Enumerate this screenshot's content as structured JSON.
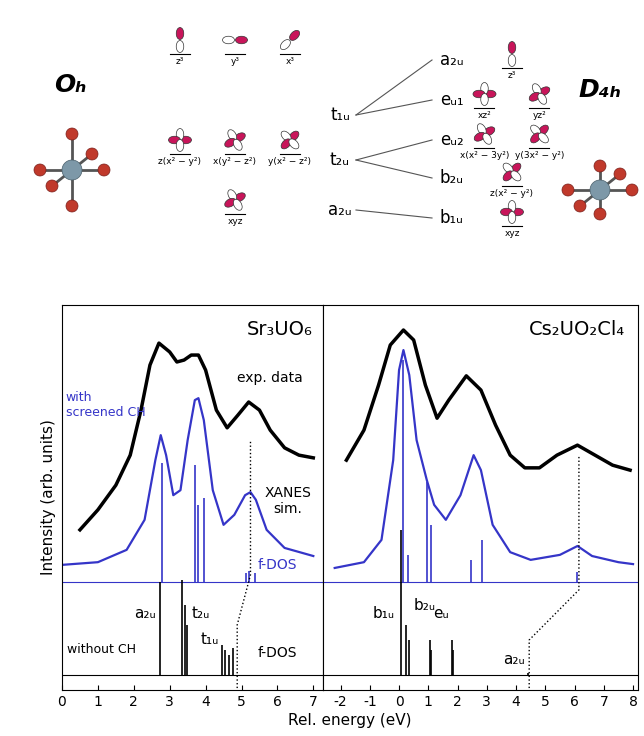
{
  "diagram": {
    "left": {
      "label": "Oₕ",
      "levels": [
        {
          "label": "t₁ᵤ",
          "orbitals": [
            "z³",
            "y³",
            "x³"
          ]
        },
        {
          "label": "t₂ᵤ",
          "orbitals": [
            "z(x² − y²)",
            "x(y² − z²)",
            "y(x² − z²)"
          ]
        },
        {
          "label": "a₂ᵤ",
          "orbitals": [
            "xyz"
          ]
        }
      ]
    },
    "right": {
      "label": "D₄ₕ",
      "levels": [
        {
          "label": "a₂ᵤ",
          "orbitals": [
            "z³"
          ]
        },
        {
          "label": "eᵤ₁",
          "orbitals": [
            "xz²",
            "yz²"
          ]
        },
        {
          "label": "eᵤ₂",
          "orbitals": [
            "x(x² − 3y²)",
            "y(3x² − y²)"
          ]
        },
        {
          "label": "b₂ᵤ",
          "orbitals": [
            "z(x² − y²)"
          ]
        },
        {
          "label": "b₁ᵤ",
          "orbitals": [
            "xyz"
          ]
        }
      ]
    },
    "connections": [
      [
        0,
        0
      ],
      [
        0,
        1
      ],
      [
        1,
        2
      ],
      [
        1,
        3
      ],
      [
        2,
        4
      ]
    ]
  },
  "x_label": "Rel. energy (eV)",
  "chart_data": [
    {
      "type": "line",
      "title": "Sr₃UO₆",
      "y_label": "Intensity (arb. units)",
      "xlim": [
        0,
        7.27
      ],
      "xticks": [
        0,
        1,
        2,
        3,
        4,
        5,
        6,
        7
      ],
      "ylim": [
        0,
        100
      ],
      "tick_labels": "x",
      "series": [
        {
          "name": "exp. data",
          "type": "line",
          "color": "#000000",
          "x": [
            0.5,
            1.0,
            1.5,
            1.9,
            2.2,
            2.45,
            2.7,
            3.0,
            3.2,
            3.4,
            3.6,
            3.8,
            4.0,
            4.3,
            4.6,
            4.9,
            5.2,
            5.5,
            5.8,
            6.2,
            6.6,
            7.0
          ],
          "values": [
            41.6,
            46.8,
            53.2,
            61.0,
            72.7,
            84.4,
            90.1,
            87.8,
            85.2,
            85.7,
            87.0,
            87.0,
            83.1,
            72.7,
            68.1,
            71.4,
            74.8,
            72.7,
            67.5,
            62.9,
            61.0,
            60.3
          ]
        },
        {
          "name": "XANES\nsim.",
          "type": "line",
          "color": "#3535c8",
          "x": [
            0.0,
            1.0,
            1.8,
            2.3,
            2.6,
            2.75,
            2.9,
            3.1,
            3.3,
            3.5,
            3.7,
            3.8,
            3.95,
            4.2,
            4.5,
            4.8,
            5.1,
            5.25,
            5.4,
            5.7,
            6.2,
            7.0
          ],
          "values": [
            32.5,
            33.2,
            36.4,
            44.2,
            59.7,
            66.2,
            61.0,
            50.6,
            51.9,
            64.9,
            75.3,
            75.8,
            70.1,
            51.9,
            42.9,
            45.5,
            50.6,
            51.4,
            49.4,
            41.6,
            36.9,
            34.8
          ]
        },
        {
          "name": "f-DOS",
          "type": "stem",
          "color": "#3535c8",
          "baseline": 28.1,
          "x": [
            2.78,
            3.7,
            3.78,
            3.95,
            5.12,
            5.22,
            5.38
          ],
          "values": [
            59.0,
            58.4,
            48.1,
            49.9,
            30.4,
            31.0,
            30.4
          ]
        },
        {
          "name": "f-DOS",
          "type": "stem",
          "color": "#000000",
          "baseline": 3.9,
          "x": [
            2.72,
            3.35,
            3.42,
            3.48,
            4.45,
            4.55,
            4.65,
            4.75
          ],
          "values": [
            28.1,
            28.6,
            22.1,
            16.9,
            11.7,
            10.4,
            9.1,
            10.9
          ],
          "peak_labels": [
            {
              "text": "a₂ᵤ",
              "x": 2.72
            },
            {
              "text": "t₂ᵤ",
              "x": 3.42
            },
            {
              "text": "t₁ᵤ",
              "x": 4.6
            }
          ]
        }
      ],
      "annotations": [
        {
          "text": "with\nscreened CH",
          "color": "#3535c8"
        },
        {
          "text": "without CH",
          "color": "#000000"
        }
      ],
      "connector": {
        "x": [
          4.88,
          4.88,
          5.25,
          5.25
        ],
        "y": [
          0.5,
          16.9,
          29.9,
          64.9
        ],
        "line_style": "dotted"
      }
    },
    {
      "type": "line",
      "title": "Cs₂UO₂Cl₄",
      "xlim": [
        -2.6,
        8.17
      ],
      "xticks": [
        -2,
        -1,
        0,
        1,
        2,
        3,
        4,
        5,
        6,
        7,
        8
      ],
      "ylim": [
        0,
        100
      ],
      "tick_labels": "x",
      "series": [
        {
          "type": "line",
          "color": "#000000",
          "x": [
            -1.8,
            -1.2,
            -0.7,
            -0.3,
            0.15,
            0.5,
            0.9,
            1.3,
            1.7,
            2.3,
            2.8,
            3.3,
            3.8,
            4.3,
            4.8,
            5.4,
            6.1,
            6.7,
            7.3,
            7.9
          ],
          "values": [
            59.7,
            67.5,
            79.2,
            89.6,
            93.5,
            90.9,
            79.2,
            70.6,
            75.3,
            81.6,
            77.9,
            68.8,
            61.0,
            57.7,
            57.7,
            61.0,
            63.6,
            61.0,
            58.4,
            57.1
          ]
        },
        {
          "type": "line",
          "color": "#3535c8",
          "x": [
            -2.2,
            -1.2,
            -0.6,
            -0.2,
            0.0,
            0.15,
            0.35,
            0.6,
            0.95,
            1.2,
            1.6,
            2.1,
            2.55,
            2.8,
            3.2,
            3.8,
            4.5,
            5.5,
            6.1,
            6.6,
            7.5,
            8.0
          ],
          "values": [
            31.7,
            33.2,
            39.0,
            59.7,
            83.1,
            88.3,
            81.8,
            64.9,
            54.5,
            48.1,
            44.2,
            50.6,
            61.0,
            57.1,
            42.9,
            35.8,
            33.8,
            35.1,
            37.4,
            34.8,
            33.2,
            32.7
          ]
        },
        {
          "type": "stem",
          "color": "#3535c8",
          "baseline": 28.1,
          "x": [
            0.12,
            0.3,
            0.95,
            1.1,
            2.45,
            2.85,
            6.1
          ],
          "values": [
            85.7,
            35.1,
            54.0,
            42.9,
            33.8,
            39.0,
            30.6
          ]
        },
        {
          "type": "stem",
          "color": "#000000",
          "baseline": 3.9,
          "x": [
            0.05,
            0.25,
            0.35,
            1.05,
            1.1,
            1.8,
            1.85,
            4.4
          ],
          "values": [
            41.6,
            16.9,
            13.0,
            13.0,
            10.4,
            13.0,
            10.4,
            4.4
          ],
          "peak_labels": [
            {
              "text": "b₁ᵤ",
              "x": 0.05
            },
            {
              "text": "b₂ᵤ",
              "x": 0.3
            },
            {
              "text": "eᵤ",
              "x": 1.45
            },
            {
              "text": "a₂ᵤ",
              "x": 4.4
            }
          ]
        }
      ],
      "connector": {
        "x": [
          4.45,
          4.45,
          6.15,
          6.15
        ],
        "y": [
          0.5,
          13.0,
          26.0,
          61.0
        ],
        "line_style": "dotted"
      }
    }
  ]
}
